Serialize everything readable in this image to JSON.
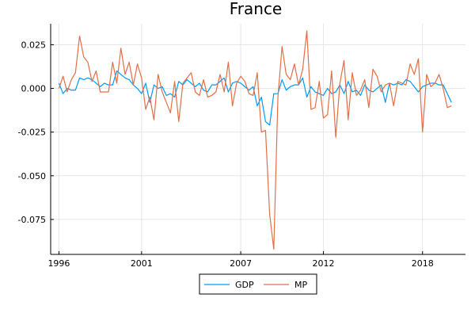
{
  "chart_data": {
    "type": "line",
    "title": "France",
    "xlabel": "",
    "ylabel": "",
    "xlim": [
      1995.5,
      2020.6
    ],
    "ylim": [
      -0.095,
      0.037
    ],
    "xticks": [
      1996,
      2001,
      2007,
      2012,
      2018
    ],
    "xtick_labels": [
      "1996",
      "2001",
      "2007",
      "2012",
      "2018"
    ],
    "yticks": [
      0.025,
      0.0,
      -0.025,
      -0.05,
      -0.075
    ],
    "ytick_labels": [
      "0.025",
      "0.000",
      "-0.025",
      "-0.050",
      "-0.075"
    ],
    "grid": true,
    "legend_position": "bottom-center",
    "series": [
      {
        "name": "GDP",
        "color": "#009af9",
        "x": [
          1996.0,
          1996.25,
          1996.5,
          1996.75,
          1997.0,
          1997.25,
          1997.5,
          1997.75,
          1998.0,
          1998.25,
          1998.5,
          1998.75,
          1999.0,
          1999.25,
          1999.5,
          1999.75,
          2000.0,
          2000.25,
          2000.5,
          2000.75,
          2001.0,
          2001.25,
          2001.5,
          2001.75,
          2002.0,
          2002.25,
          2002.5,
          2002.75,
          2003.0,
          2003.25,
          2003.5,
          2003.75,
          2004.0,
          2004.25,
          2004.5,
          2004.75,
          2005.0,
          2005.25,
          2005.5,
          2005.75,
          2006.0,
          2006.25,
          2006.5,
          2006.75,
          2007.0,
          2007.25,
          2007.5,
          2007.75,
          2008.0,
          2008.25,
          2008.5,
          2008.75,
          2009.0,
          2009.25,
          2009.5,
          2009.75,
          2010.0,
          2010.25,
          2010.5,
          2010.75,
          2011.0,
          2011.25,
          2011.5,
          2011.75,
          2012.0,
          2012.25,
          2012.5,
          2012.75,
          2013.0,
          2013.25,
          2013.5,
          2013.75,
          2014.0,
          2014.25,
          2014.5,
          2014.75,
          2015.0,
          2015.25,
          2015.5,
          2015.75,
          2016.0,
          2016.25,
          2016.5,
          2016.75,
          2017.0,
          2017.25,
          2017.5,
          2017.75,
          2018.0,
          2018.25,
          2018.5,
          2018.75,
          2019.0,
          2019.25,
          2019.5,
          2019.75
        ],
        "y": [
          0.003,
          -0.003,
          0.0,
          -0.001,
          -0.001,
          0.006,
          0.005,
          0.006,
          0.005,
          0.003,
          0.001,
          0.003,
          0.002,
          0.002,
          0.01,
          0.008,
          0.006,
          0.005,
          0.002,
          0.0,
          -0.003,
          0.003,
          -0.008,
          0.002,
          0.0,
          0.001,
          -0.004,
          -0.003,
          -0.005,
          0.004,
          0.002,
          0.005,
          0.003,
          0.001,
          0.003,
          -0.001,
          -0.002,
          0.002,
          0.002,
          0.004,
          0.006,
          -0.002,
          0.003,
          0.004,
          0.003,
          0.001,
          -0.001,
          0.001,
          -0.01,
          -0.005,
          -0.019,
          -0.021,
          -0.003,
          -0.003,
          0.005,
          -0.001,
          0.001,
          0.002,
          0.002,
          0.006,
          -0.005,
          0.001,
          -0.002,
          -0.003,
          -0.004,
          0.0,
          -0.003,
          -0.002,
          0.002,
          -0.003,
          0.004,
          -0.002,
          -0.001,
          -0.004,
          0.002,
          -0.001,
          -0.002,
          0.0,
          0.002,
          -0.008,
          0.003,
          0.002,
          0.003,
          0.002,
          0.005,
          0.004,
          0.001,
          -0.002,
          0.001,
          0.002,
          0.003,
          0.003,
          0.002,
          0.002,
          -0.003,
          -0.008
        ]
      },
      {
        "name": "MP",
        "color": "#e26f46",
        "x": [
          1996.0,
          1996.25,
          1996.5,
          1996.75,
          1997.0,
          1997.25,
          1997.5,
          1997.75,
          1998.0,
          1998.25,
          1998.5,
          1998.75,
          1999.0,
          1999.25,
          1999.5,
          1999.75,
          2000.0,
          2000.25,
          2000.5,
          2000.75,
          2001.0,
          2001.25,
          2001.5,
          2001.75,
          2002.0,
          2002.25,
          2002.5,
          2002.75,
          2003.0,
          2003.25,
          2003.5,
          2003.75,
          2004.0,
          2004.25,
          2004.5,
          2004.75,
          2005.0,
          2005.25,
          2005.5,
          2005.75,
          2006.0,
          2006.25,
          2006.5,
          2006.75,
          2007.0,
          2007.25,
          2007.5,
          2007.75,
          2008.0,
          2008.25,
          2008.5,
          2008.75,
          2009.0,
          2009.25,
          2009.5,
          2009.75,
          2010.0,
          2010.25,
          2010.5,
          2010.75,
          2011.0,
          2011.25,
          2011.5,
          2011.75,
          2012.0,
          2012.25,
          2012.5,
          2012.75,
          2013.0,
          2013.25,
          2013.5,
          2013.75,
          2014.0,
          2014.25,
          2014.5,
          2014.75,
          2015.0,
          2015.25,
          2015.5,
          2015.75,
          2016.0,
          2016.25,
          2016.5,
          2016.75,
          2017.0,
          2017.25,
          2017.5,
          2017.75,
          2018.0,
          2018.25,
          2018.5,
          2018.75,
          2019.0,
          2019.25,
          2019.5,
          2019.75
        ],
        "y": [
          0.0,
          0.007,
          -0.002,
          0.005,
          0.009,
          0.03,
          0.018,
          0.015,
          0.004,
          0.01,
          -0.002,
          -0.002,
          -0.002,
          0.015,
          0.003,
          0.023,
          0.008,
          0.015,
          0.002,
          0.014,
          0.006,
          -0.012,
          -0.005,
          -0.018,
          0.008,
          -0.002,
          -0.008,
          -0.014,
          0.004,
          -0.019,
          0.003,
          0.006,
          0.009,
          -0.002,
          -0.004,
          0.005,
          -0.005,
          -0.004,
          -0.002,
          0.008,
          -0.002,
          0.015,
          -0.01,
          0.003,
          0.007,
          0.004,
          -0.003,
          -0.004,
          0.009,
          -0.025,
          -0.024,
          -0.072,
          -0.092,
          -0.005,
          0.024,
          0.008,
          0.005,
          0.014,
          0.002,
          0.011,
          0.033,
          -0.012,
          -0.011,
          0.004,
          -0.017,
          -0.015,
          0.01,
          -0.028,
          0.003,
          0.016,
          -0.018,
          0.009,
          -0.004,
          -0.001,
          0.005,
          -0.011,
          0.011,
          0.007,
          -0.002,
          0.002,
          0.003,
          -0.01,
          0.004,
          0.003,
          0.002,
          0.014,
          0.008,
          0.017,
          -0.025,
          0.008,
          0.001,
          0.003,
          0.008,
          0.0,
          -0.011,
          -0.01
        ]
      }
    ]
  }
}
